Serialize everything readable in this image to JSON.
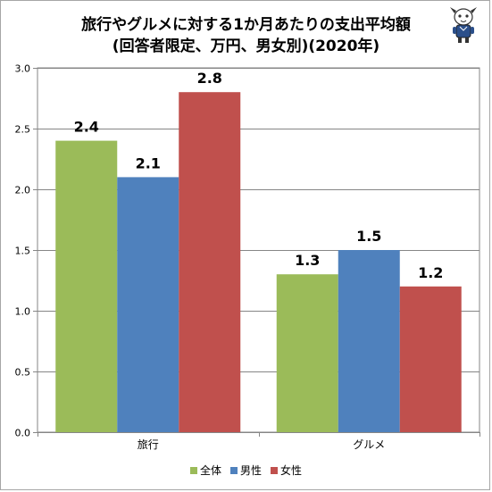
{
  "title_line1": "旅行やグルメに対する1か月あたりの支出平均額",
  "title_line2": "(回答者限定、万円、男女別)(2020年)",
  "mascot_icon": "cartoon-character-logo",
  "chart_data": {
    "type": "bar",
    "categories": [
      "旅行",
      "グルメ"
    ],
    "series": [
      {
        "name": "全体",
        "color": "#9bbb59",
        "values": [
          2.4,
          1.3
        ]
      },
      {
        "name": "男性",
        "color": "#4f81bd",
        "values": [
          2.1,
          1.5
        ]
      },
      {
        "name": "女性",
        "color": "#c0504d",
        "values": [
          2.8,
          1.2
        ]
      }
    ],
    "ylim": [
      0,
      3.0
    ],
    "yticks": [
      "0.0",
      "0.5",
      "1.0",
      "1.5",
      "2.0",
      "2.5",
      "3.0"
    ],
    "ytick_values": [
      0,
      0.5,
      1.0,
      1.5,
      2.0,
      2.5,
      3.0
    ],
    "data_labels": [
      [
        "2.4",
        "1.3"
      ],
      [
        "2.1",
        "1.5"
      ],
      [
        "2.8",
        "1.2"
      ]
    ],
    "grid": true,
    "legend": "bottom"
  }
}
